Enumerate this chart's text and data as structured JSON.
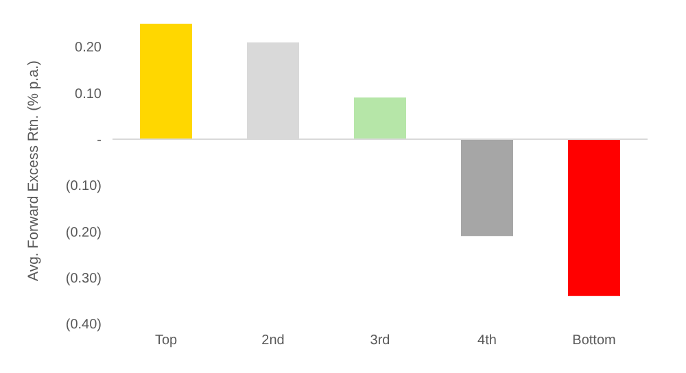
{
  "chart_data": {
    "type": "bar",
    "ylabel": "Avg. Forward Excess Rtn. (% p.a.)",
    "categories": [
      "Top",
      "2nd",
      "3rd",
      "4th",
      "Bottom"
    ],
    "values": [
      0.25,
      0.21,
      0.09,
      -0.21,
      -0.34
    ],
    "colors": [
      "#ffd700",
      "#d9d9d9",
      "#b6e6a8",
      "#a6a6a6",
      "#ff0000"
    ],
    "ylim": [
      -0.4,
      0.26
    ],
    "yticks": [
      {
        "value": 0.2,
        "label": "0.20"
      },
      {
        "value": 0.1,
        "label": "0.10"
      },
      {
        "value": 0,
        "label": "-"
      },
      {
        "value": -0.1,
        "label": "(0.10)"
      },
      {
        "value": -0.2,
        "label": "(0.20)"
      },
      {
        "value": -0.3,
        "label": "(0.30)"
      },
      {
        "value": -0.4,
        "label": "(0.40)"
      }
    ],
    "ref_lines": [
      {
        "axis": "y",
        "value": 0,
        "color": "#d9d9d9"
      }
    ]
  }
}
